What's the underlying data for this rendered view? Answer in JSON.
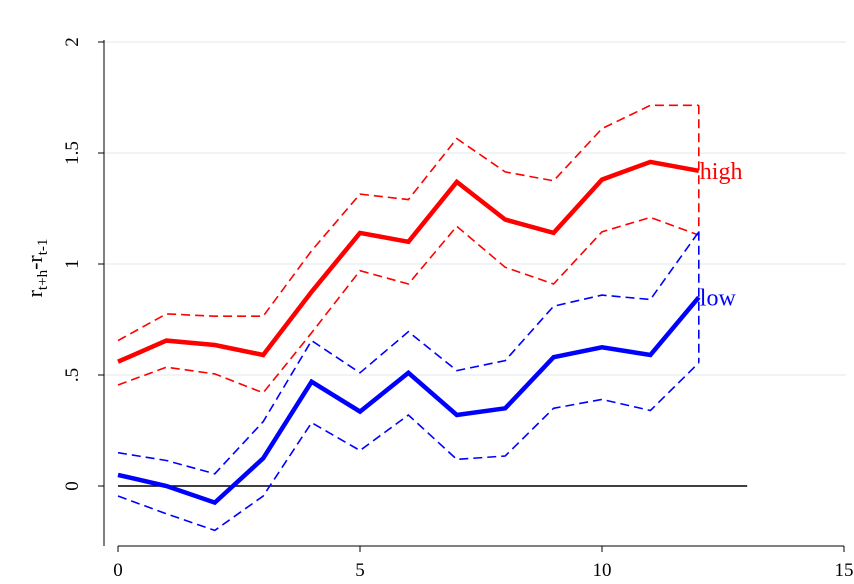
{
  "chart_data": {
    "type": "line",
    "title": "",
    "xlabel": "",
    "ylabel_main": "r",
    "ylabel_sub1": "t+h",
    "ylabel_mid": "-r",
    "ylabel_sub2": "t-1",
    "xlim": [
      0,
      15
    ],
    "ylim": [
      -0.25,
      2.05
    ],
    "x_ticks": [
      0,
      5,
      10,
      15
    ],
    "x_tick_labels": [
      "0",
      "5",
      "10",
      "15"
    ],
    "y_ticks": [
      0,
      0.5,
      1,
      1.5,
      2
    ],
    "y_tick_labels": [
      "0",
      ".5",
      "1",
      "1.5",
      "2"
    ],
    "grid": true,
    "legend": "none",
    "x": [
      0,
      1,
      2,
      3,
      4,
      5,
      6,
      7,
      8,
      9,
      10,
      11,
      12
    ],
    "zero_line": {
      "from": 0,
      "to": 13,
      "y": 0,
      "color": "#000000"
    },
    "series": [
      {
        "name": "high",
        "color": "#ff0000",
        "values": [
          0.56,
          0.655,
          0.635,
          0.59,
          0.875,
          1.14,
          1.1,
          1.37,
          1.2,
          1.14,
          1.38,
          1.46,
          1.42
        ],
        "upper": [
          0.655,
          0.775,
          0.765,
          0.765,
          1.06,
          1.315,
          1.29,
          1.565,
          1.415,
          1.375,
          1.61,
          1.715,
          1.715
        ],
        "lower": [
          0.455,
          0.535,
          0.505,
          0.42,
          0.69,
          0.97,
          0.91,
          1.17,
          0.985,
          0.91,
          1.145,
          1.21,
          1.13
        ]
      },
      {
        "name": "low",
        "color": "#0000ff",
        "values": [
          0.05,
          0.0,
          -0.075,
          0.125,
          0.47,
          0.335,
          0.51,
          0.32,
          0.35,
          0.58,
          0.625,
          0.59,
          0.85
        ],
        "upper": [
          0.15,
          0.115,
          0.055,
          0.29,
          0.655,
          0.51,
          0.695,
          0.52,
          0.565,
          0.81,
          0.86,
          0.84,
          1.145
        ],
        "lower": [
          -0.045,
          -0.125,
          -0.2,
          -0.045,
          0.285,
          0.16,
          0.32,
          0.12,
          0.135,
          0.35,
          0.39,
          0.34,
          0.555
        ]
      }
    ]
  }
}
